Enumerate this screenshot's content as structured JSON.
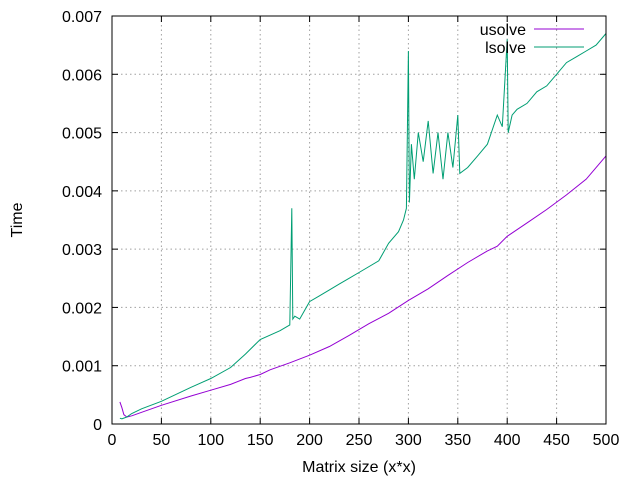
{
  "chart_data": {
    "type": "line",
    "title": "",
    "xlabel": "Matrix size (x*x)",
    "ylabel": "Time",
    "xlim": [
      0,
      500
    ],
    "ylim": [
      0,
      0.007
    ],
    "x_ticks": [
      0,
      50,
      100,
      150,
      200,
      250,
      300,
      350,
      400,
      450,
      500
    ],
    "x_tick_labels": [
      "0",
      "50",
      "100",
      "150",
      "200",
      "250",
      "300",
      "350",
      "400",
      "450",
      "500"
    ],
    "y_ticks": [
      0,
      0.001,
      0.002,
      0.003,
      0.004,
      0.005,
      0.006,
      0.007
    ],
    "y_tick_labels": [
      "0",
      "0.001",
      "0.002",
      "0.003",
      "0.004",
      "0.005",
      "0.006",
      "0.007"
    ],
    "grid": true,
    "legend": "top-right",
    "series": [
      {
        "name": "usolve",
        "color": "#9400d3",
        "points": [
          [
            8,
            0.00038
          ],
          [
            10,
            0.00028
          ],
          [
            12,
            0.00016
          ],
          [
            15,
            0.00012
          ],
          [
            20,
            0.00014
          ],
          [
            30,
            0.0002
          ],
          [
            50,
            0.00032
          ],
          [
            80,
            0.00048
          ],
          [
            100,
            0.00058
          ],
          [
            120,
            0.00068
          ],
          [
            135,
            0.00078
          ],
          [
            140,
            0.0008
          ],
          [
            150,
            0.00085
          ],
          [
            160,
            0.00093
          ],
          [
            180,
            0.00105
          ],
          [
            200,
            0.00118
          ],
          [
            220,
            0.00133
          ],
          [
            240,
            0.00152
          ],
          [
            260,
            0.00172
          ],
          [
            280,
            0.0019
          ],
          [
            300,
            0.00212
          ],
          [
            320,
            0.00232
          ],
          [
            340,
            0.00255
          ],
          [
            360,
            0.00277
          ],
          [
            380,
            0.00297
          ],
          [
            390,
            0.00305
          ],
          [
            400,
            0.00322
          ],
          [
            420,
            0.00345
          ],
          [
            440,
            0.00368
          ],
          [
            460,
            0.00393
          ],
          [
            480,
            0.0042
          ],
          [
            500,
            0.0046
          ]
        ]
      },
      {
        "name": "lsolve",
        "color": "#009e73",
        "points": [
          [
            8,
            0.0001
          ],
          [
            10,
            9e-05
          ],
          [
            15,
            0.00012
          ],
          [
            20,
            0.00018
          ],
          [
            30,
            0.00026
          ],
          [
            50,
            0.00039
          ],
          [
            80,
            0.00063
          ],
          [
            100,
            0.00078
          ],
          [
            120,
            0.00097
          ],
          [
            135,
            0.0012
          ],
          [
            150,
            0.00145
          ],
          [
            170,
            0.0016
          ],
          [
            180,
            0.0017
          ],
          [
            182,
            0.0037
          ],
          [
            183,
            0.0018
          ],
          [
            185,
            0.00185
          ],
          [
            190,
            0.0018
          ],
          [
            195,
            0.00195
          ],
          [
            200,
            0.0021
          ],
          [
            210,
            0.0022
          ],
          [
            220,
            0.0023
          ],
          [
            230,
            0.0024
          ],
          [
            240,
            0.0025
          ],
          [
            250,
            0.0026
          ],
          [
            270,
            0.0028
          ],
          [
            280,
            0.0031
          ],
          [
            290,
            0.0033
          ],
          [
            295,
            0.0035
          ],
          [
            298,
            0.0037
          ],
          [
            300,
            0.0064
          ],
          [
            301,
            0.0038
          ],
          [
            303,
            0.0048
          ],
          [
            306,
            0.0042
          ],
          [
            310,
            0.005
          ],
          [
            315,
            0.0045
          ],
          [
            320,
            0.0052
          ],
          [
            325,
            0.0043
          ],
          [
            330,
            0.005
          ],
          [
            335,
            0.0042
          ],
          [
            340,
            0.005
          ],
          [
            345,
            0.0044
          ],
          [
            350,
            0.0053
          ],
          [
            352,
            0.0043
          ],
          [
            360,
            0.0044
          ],
          [
            370,
            0.0046
          ],
          [
            380,
            0.0048
          ],
          [
            390,
            0.0053
          ],
          [
            395,
            0.0051
          ],
          [
            400,
            0.0066
          ],
          [
            401,
            0.005
          ],
          [
            405,
            0.0053
          ],
          [
            410,
            0.0054
          ],
          [
            420,
            0.0055
          ],
          [
            430,
            0.0057
          ],
          [
            440,
            0.0058
          ],
          [
            450,
            0.006
          ],
          [
            460,
            0.0062
          ],
          [
            470,
            0.0063
          ],
          [
            480,
            0.0064
          ],
          [
            490,
            0.0065
          ],
          [
            500,
            0.0067
          ]
        ]
      }
    ]
  }
}
